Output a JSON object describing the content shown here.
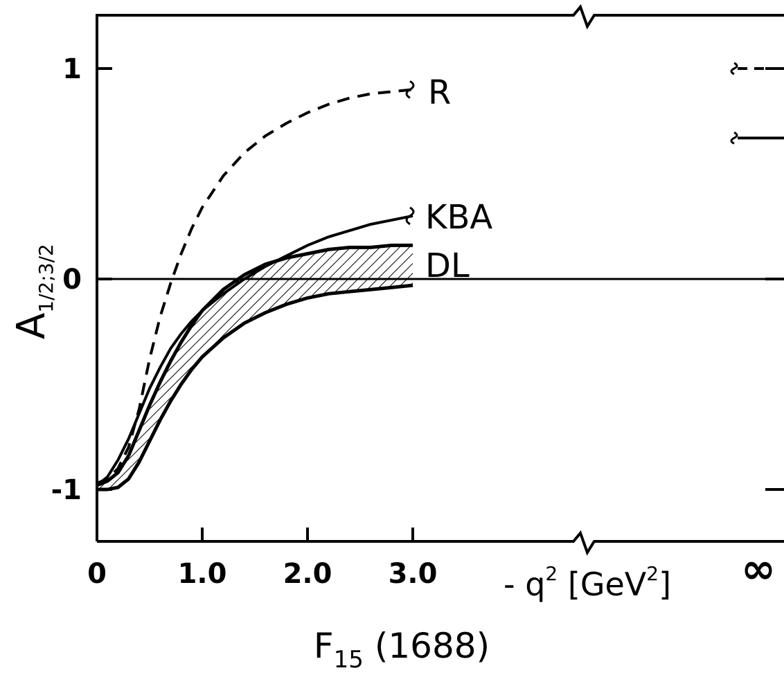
{
  "chart_data": {
    "type": "line",
    "title": "F15 (1688)",
    "title_parts": {
      "main": "F",
      "sub": "15",
      "rest": " (1688)"
    },
    "ylabel": "A1/2;3/2",
    "ylabel_parts": {
      "main": "A",
      "sub": "1/2;3/2"
    },
    "xlabel": "- q2 [GeV2]",
    "xlabel_parts": {
      "a": "- q",
      "sup1": "2",
      "b": " [GeV",
      "sup2": "2",
      "c": "]"
    },
    "x_ticks": [
      "0",
      "1.0",
      "2.0",
      "3.0"
    ],
    "x_tick_values": [
      0,
      1,
      2,
      3
    ],
    "x_infinity_label": "∞",
    "y_ticks": [
      "-1",
      "0",
      "1"
    ],
    "y_tick_values": [
      -1,
      0,
      1
    ],
    "xlim": [
      0,
      3.0
    ],
    "ylim": [
      -1.25,
      1.25
    ],
    "grid": false,
    "legend": "inline labels at curve ends",
    "series": [
      {
        "name": "R",
        "style": "dashed",
        "x": [
          0,
          0.1,
          0.2,
          0.3,
          0.4,
          0.5,
          0.6,
          0.7,
          0.8,
          0.9,
          1.0,
          1.2,
          1.4,
          1.6,
          1.8,
          2.0,
          2.2,
          2.4,
          2.6,
          2.8,
          3.0
        ],
        "y": [
          -0.97,
          -0.95,
          -0.9,
          -0.8,
          -0.62,
          -0.38,
          -0.18,
          -0.02,
          0.12,
          0.24,
          0.34,
          0.49,
          0.6,
          0.68,
          0.74,
          0.79,
          0.83,
          0.86,
          0.88,
          0.89,
          0.9
        ],
        "asymptote": 1.0
      },
      {
        "name": "KBA",
        "style": "solid",
        "x": [
          0,
          0.1,
          0.2,
          0.3,
          0.4,
          0.5,
          0.6,
          0.7,
          0.8,
          0.9,
          1.0,
          1.2,
          1.4,
          1.6,
          1.8,
          2.0,
          2.2,
          2.4,
          2.6,
          2.8,
          3.0
        ],
        "y": [
          -0.98,
          -0.94,
          -0.86,
          -0.76,
          -0.64,
          -0.52,
          -0.42,
          -0.33,
          -0.26,
          -0.2,
          -0.15,
          -0.07,
          0.0,
          0.06,
          0.11,
          0.16,
          0.2,
          0.23,
          0.26,
          0.28,
          0.3
        ],
        "asymptote": 0.67
      },
      {
        "name": "DL",
        "style": "hatched-band",
        "x": [
          0,
          0.1,
          0.2,
          0.3,
          0.4,
          0.5,
          0.6,
          0.7,
          0.8,
          0.9,
          1.0,
          1.2,
          1.4,
          1.6,
          1.8,
          2.0,
          2.2,
          2.4,
          2.6,
          2.8,
          3.0
        ],
        "upper": [
          -0.98,
          -0.96,
          -0.92,
          -0.84,
          -0.72,
          -0.6,
          -0.49,
          -0.39,
          -0.3,
          -0.22,
          -0.15,
          -0.05,
          0.02,
          0.07,
          0.1,
          0.12,
          0.14,
          0.15,
          0.15,
          0.16,
          0.16
        ],
        "lower": [
          -1.0,
          -1.0,
          -0.99,
          -0.95,
          -0.87,
          -0.77,
          -0.67,
          -0.58,
          -0.5,
          -0.43,
          -0.37,
          -0.28,
          -0.21,
          -0.16,
          -0.12,
          -0.09,
          -0.07,
          -0.06,
          -0.05,
          -0.04,
          -0.03
        ],
        "asymptote": -1.0
      }
    ]
  }
}
